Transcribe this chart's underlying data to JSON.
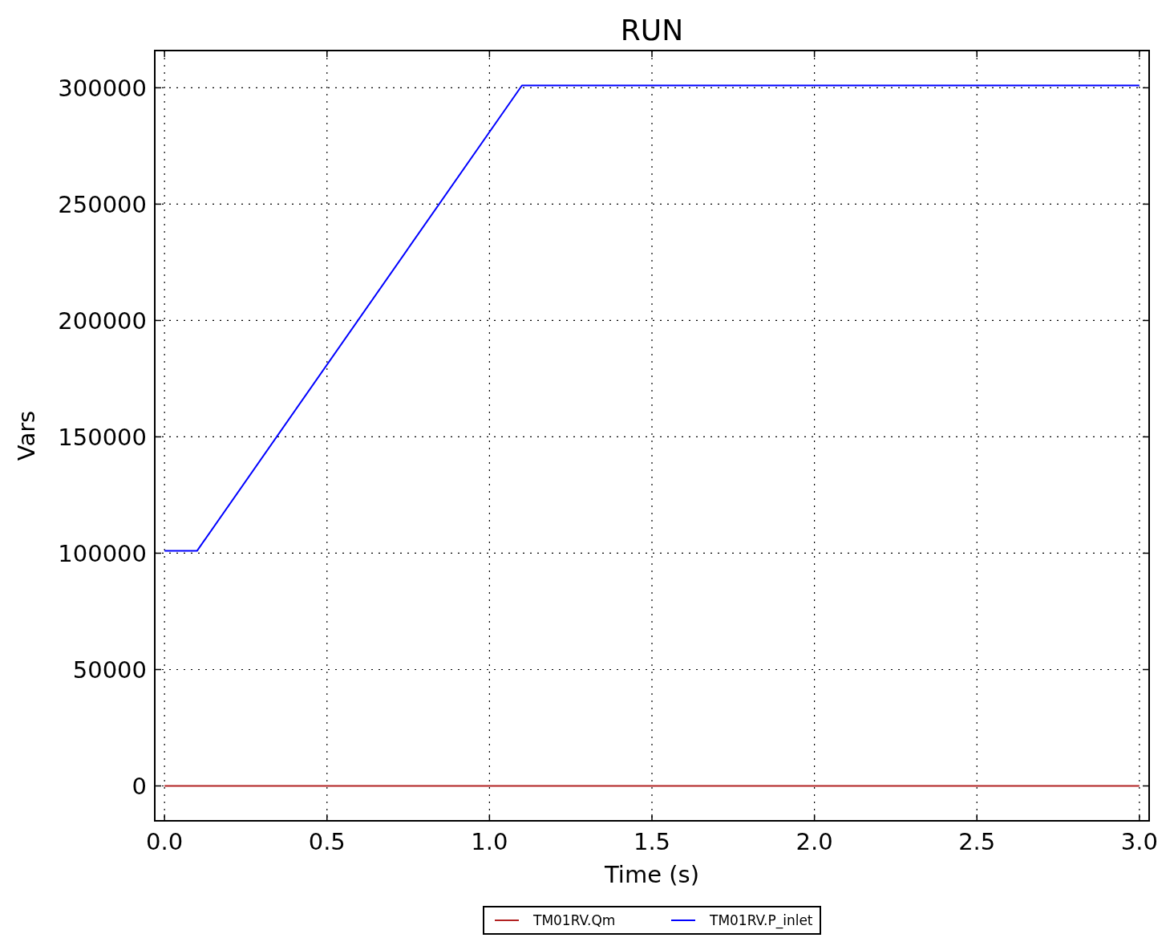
{
  "chart_data": {
    "type": "line",
    "title": "RUN",
    "xlabel": "Time (s)",
    "ylabel": "Vars",
    "xlim": [
      -0.03,
      3.03
    ],
    "xticks": [
      {
        "value": 0,
        "label": "0.0"
      },
      0.5,
      {
        "value": 1,
        "label": "1.0"
      },
      1.5,
      {
        "value": 2,
        "label": "2.0"
      },
      2.5,
      {
        "value": 3,
        "label": "3.0"
      }
    ],
    "ylim": [
      -15000,
      316000
    ],
    "yticks": [
      0,
      50000,
      100000,
      150000,
      200000,
      250000,
      300000
    ],
    "grid": true,
    "legend": "bottom",
    "line_style": "solid",
    "marker": "none",
    "series": [
      {
        "name": "TM01RV.Qm",
        "color": "#b22222",
        "x": [
          0,
          3
        ],
        "values": [
          0,
          0
        ]
      },
      {
        "name": "TM01RV.P_inlet",
        "color": "#0000ff",
        "x": [
          0,
          0.1,
          1.1,
          3
        ],
        "values": [
          101000,
          101000,
          301000,
          301000
        ]
      }
    ]
  }
}
